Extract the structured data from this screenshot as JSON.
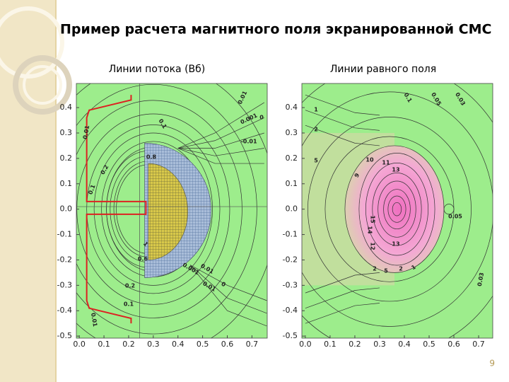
{
  "title": "Пример расчета магнитного поля экранированной СМС",
  "page_number": "9",
  "panels": [
    {
      "subtitle": "Линии потока  (Вб)",
      "xlim": [
        -0.012,
        0.762
      ],
      "ylim": [
        -0.508,
        0.495
      ],
      "xticks": [
        {
          "value": 0,
          "label": "0.0"
        },
        0.1,
        0.2,
        0.3,
        0.4,
        0.5,
        0.6,
        0.7
      ],
      "yticks": [
        0.4,
        0.3,
        0.2,
        0.1,
        {
          "value": 0,
          "label": "0.0"
        },
        -0.1,
        -0.2,
        -0.3,
        -0.4,
        -0.5
      ],
      "contour_labels": [
        "0.01",
        "0.001",
        "0",
        "-0.01",
        "0.1",
        "0.8",
        "0.01",
        "0.2",
        "0.1",
        "0.6",
        "0.2",
        "0.1",
        "0.01",
        "0.001",
        "0.01",
        "0.01",
        "0",
        "1"
      ]
    },
    {
      "subtitle": "Линии равного поля",
      "xlim": [
        -0.014,
        0.757
      ],
      "ylim": [
        -0.508,
        0.495
      ],
      "xticks": [
        {
          "value": 0,
          "label": "0.0"
        },
        0.1,
        0.2,
        0.3,
        0.4,
        0.5,
        0.6,
        0.7
      ],
      "yticks": [
        0.4,
        0.3,
        0.2,
        0.1,
        {
          "value": 0,
          "label": "0.0"
        },
        -0.1,
        -0.2,
        -0.3,
        -0.4,
        -0.5
      ],
      "contour_labels": [
        "0.1",
        "0.05",
        "0.03",
        "1",
        "2",
        "5",
        "10",
        "11",
        "13",
        "9",
        "15",
        "14",
        "12",
        "13",
        "2",
        "5",
        "2",
        "1",
        "0.05",
        "0.03"
      ]
    }
  ]
}
